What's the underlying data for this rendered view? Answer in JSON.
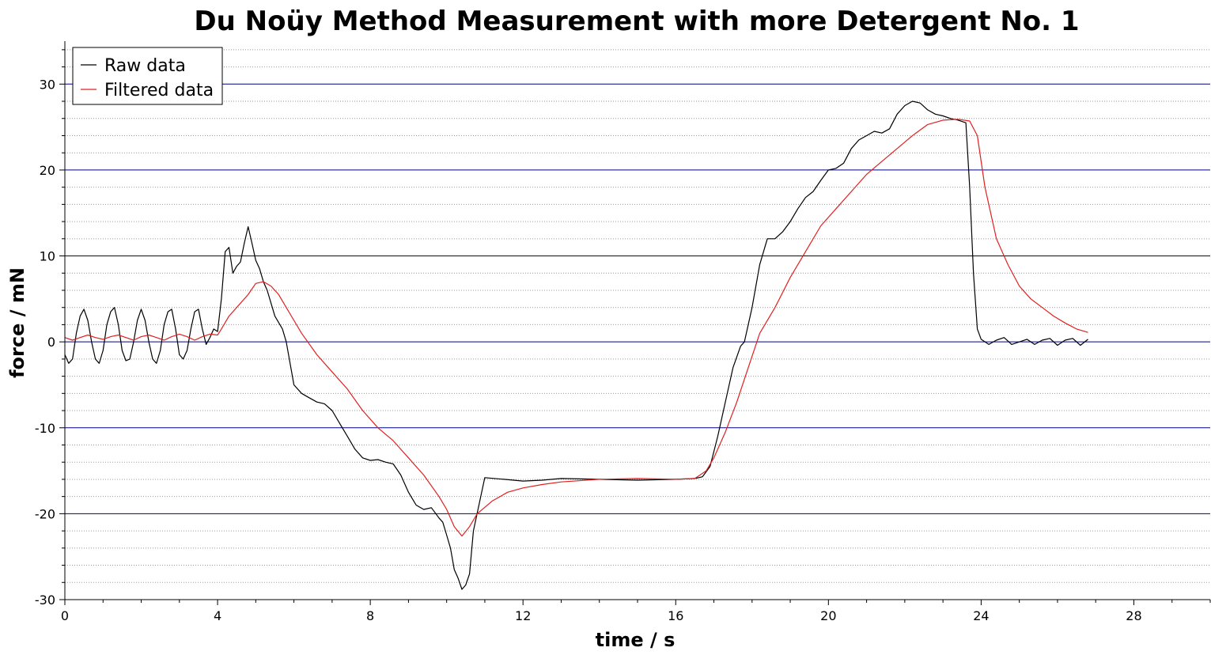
{
  "chart_data": {
    "type": "line",
    "title": "Du Noüy Method Measurement with more Detergent No. 1",
    "xlabel": "time / s",
    "ylabel": "force / mN",
    "xlim": [
      0,
      30
    ],
    "ylim": [
      -30,
      35
    ],
    "x_ticks": [
      0,
      4,
      8,
      12,
      16,
      20,
      24,
      28
    ],
    "x_tick_labels": [
      "0",
      "4",
      "8",
      "12",
      "16",
      "20",
      "24",
      "28"
    ],
    "y_ticks": [
      -30,
      -20,
      -10,
      0,
      10,
      20,
      30
    ],
    "y_tick_labels": [
      "-30",
      "-20",
      "-10",
      "0",
      "10",
      "20",
      "30"
    ],
    "major_grid_y": [
      -20,
      -10,
      0,
      10,
      20,
      30
    ],
    "minor_grid_step_y": 2,
    "legend_position": "top-left",
    "colors": {
      "raw": "#000000",
      "filtered": "#e02020",
      "major_grid": "#000080",
      "minor_grid": "#999999"
    },
    "series": [
      {
        "name": "Raw data",
        "color": "#000000",
        "x": [
          0,
          0.1,
          0.2,
          0.3,
          0.4,
          0.5,
          0.6,
          0.7,
          0.8,
          0.9,
          1.0,
          1.1,
          1.2,
          1.3,
          1.4,
          1.5,
          1.6,
          1.7,
          1.8,
          1.9,
          2.0,
          2.1,
          2.2,
          2.3,
          2.4,
          2.5,
          2.6,
          2.7,
          2.8,
          2.9,
          3.0,
          3.1,
          3.2,
          3.3,
          3.4,
          3.5,
          3.6,
          3.7,
          3.8,
          3.9,
          4.0,
          4.1,
          4.2,
          4.3,
          4.4,
          4.5,
          4.6,
          4.7,
          4.8,
          4.9,
          5.0,
          5.1,
          5.2,
          5.3,
          5.5,
          5.7,
          5.8,
          6.0,
          6.2,
          6.4,
          6.6,
          6.8,
          7.0,
          7.2,
          7.4,
          7.6,
          7.8,
          8.0,
          8.2,
          8.4,
          8.6,
          8.8,
          9.0,
          9.2,
          9.4,
          9.6,
          9.8,
          9.9,
          10.0,
          10.1,
          10.2,
          10.3,
          10.4,
          10.5,
          10.6,
          10.7,
          11.0,
          11.5,
          12.0,
          12.5,
          13.0,
          14.0,
          15.0,
          16.0,
          16.5,
          16.7,
          16.9,
          17.1,
          17.3,
          17.5,
          17.7,
          17.8,
          18.0,
          18.2,
          18.4,
          18.6,
          18.8,
          19.0,
          19.2,
          19.4,
          19.6,
          19.8,
          20.0,
          20.2,
          20.4,
          20.6,
          20.8,
          21.0,
          21.2,
          21.4,
          21.6,
          21.8,
          22.0,
          22.2,
          22.4,
          22.6,
          22.8,
          23.0,
          23.2,
          23.4,
          23.6,
          23.7,
          23.8,
          23.9,
          24.0,
          24.2,
          24.4,
          24.6,
          24.8,
          25.0,
          25.2,
          25.4,
          25.6,
          25.8,
          26.0,
          26.2,
          26.4,
          26.6,
          26.8
        ],
        "y": [
          -1.5,
          -2.5,
          -2.0,
          1.0,
          3.0,
          3.8,
          2.5,
          0.0,
          -2.0,
          -2.5,
          -1.0,
          2.0,
          3.5,
          4.0,
          2.0,
          -1.0,
          -2.2,
          -2.0,
          0.0,
          2.5,
          3.8,
          2.5,
          0.0,
          -2.0,
          -2.5,
          -1.0,
          2.0,
          3.5,
          3.8,
          1.5,
          -1.5,
          -2.0,
          -1.0,
          1.5,
          3.5,
          3.8,
          1.5,
          -0.3,
          0.5,
          1.5,
          1.2,
          5.0,
          10.5,
          11.0,
          8.0,
          8.8,
          9.3,
          11.5,
          13.4,
          11.5,
          9.5,
          8.5,
          7.0,
          6.0,
          3.0,
          1.5,
          0.0,
          -5.0,
          -6.0,
          -6.5,
          -7.0,
          -7.2,
          -8.0,
          -9.5,
          -11.0,
          -12.5,
          -13.5,
          -13.8,
          -13.7,
          -14.0,
          -14.2,
          -15.5,
          -17.5,
          -19.0,
          -19.5,
          -19.3,
          -20.5,
          -21.0,
          -22.5,
          -24.0,
          -26.5,
          -27.5,
          -28.8,
          -28.3,
          -27.0,
          -22.0,
          -15.8,
          -16.0,
          -16.2,
          -16.1,
          -15.9,
          -16.0,
          -16.1,
          -16.0,
          -15.9,
          -15.7,
          -14.5,
          -11.0,
          -7.0,
          -3.0,
          -0.5,
          0.0,
          4.0,
          9.0,
          12.0,
          12.0,
          12.8,
          14.0,
          15.5,
          16.8,
          17.5,
          18.8,
          20.0,
          20.2,
          20.8,
          22.5,
          23.5,
          24.0,
          24.5,
          24.3,
          24.8,
          26.5,
          27.5,
          28.0,
          27.8,
          27.0,
          26.5,
          26.3,
          26.0,
          25.8,
          25.5,
          18.0,
          8.0,
          1.5,
          0.3,
          -0.3,
          0.2,
          0.5,
          -0.3,
          0.0,
          0.3,
          -0.3,
          0.2,
          0.4,
          -0.4,
          0.2,
          0.4,
          -0.4,
          0.3
        ]
      },
      {
        "name": "Filtered data",
        "color": "#e02020",
        "x": [
          0,
          0.2,
          0.4,
          0.6,
          0.8,
          1.0,
          1.2,
          1.4,
          1.6,
          1.8,
          2.0,
          2.2,
          2.4,
          2.6,
          2.8,
          3.0,
          3.2,
          3.4,
          3.6,
          3.8,
          4.0,
          4.1,
          4.3,
          4.6,
          4.8,
          5.0,
          5.2,
          5.4,
          5.6,
          5.8,
          6.0,
          6.2,
          6.6,
          7.0,
          7.4,
          7.8,
          8.2,
          8.6,
          9.0,
          9.4,
          9.8,
          10.0,
          10.2,
          10.4,
          10.6,
          10.8,
          11.2,
          11.6,
          12.0,
          12.5,
          13.0,
          14.0,
          15.0,
          16.0,
          16.5,
          16.8,
          17.0,
          17.3,
          17.6,
          17.9,
          18.2,
          18.6,
          19.0,
          19.4,
          19.8,
          20.2,
          20.6,
          21.0,
          21.4,
          21.8,
          22.2,
          22.6,
          23.0,
          23.4,
          23.7,
          23.9,
          24.1,
          24.4,
          24.7,
          25.0,
          25.3,
          25.6,
          25.9,
          26.2,
          26.5,
          26.8
        ],
        "y": [
          0.5,
          0.2,
          0.5,
          0.8,
          0.5,
          0.3,
          0.6,
          0.8,
          0.5,
          0.2,
          0.6,
          0.8,
          0.5,
          0.2,
          0.6,
          0.9,
          0.6,
          0.2,
          0.6,
          0.9,
          0.8,
          1.5,
          3.0,
          4.5,
          5.5,
          6.8,
          7.0,
          6.5,
          5.5,
          4.0,
          2.5,
          1.0,
          -1.5,
          -3.5,
          -5.5,
          -8.0,
          -10.0,
          -11.5,
          -13.5,
          -15.5,
          -18.0,
          -19.5,
          -21.5,
          -22.6,
          -21.5,
          -20.0,
          -18.5,
          -17.5,
          -17.0,
          -16.6,
          -16.3,
          -16.0,
          -15.9,
          -16.0,
          -15.9,
          -15.0,
          -13.5,
          -10.5,
          -7.0,
          -3.0,
          1.0,
          4.0,
          7.5,
          10.5,
          13.5,
          15.5,
          17.5,
          19.5,
          21.0,
          22.5,
          24.0,
          25.3,
          25.8,
          25.9,
          25.7,
          24.0,
          18.0,
          12.0,
          9.0,
          6.5,
          5.0,
          4.0,
          3.0,
          2.2,
          1.5,
          1.1
        ]
      }
    ]
  }
}
